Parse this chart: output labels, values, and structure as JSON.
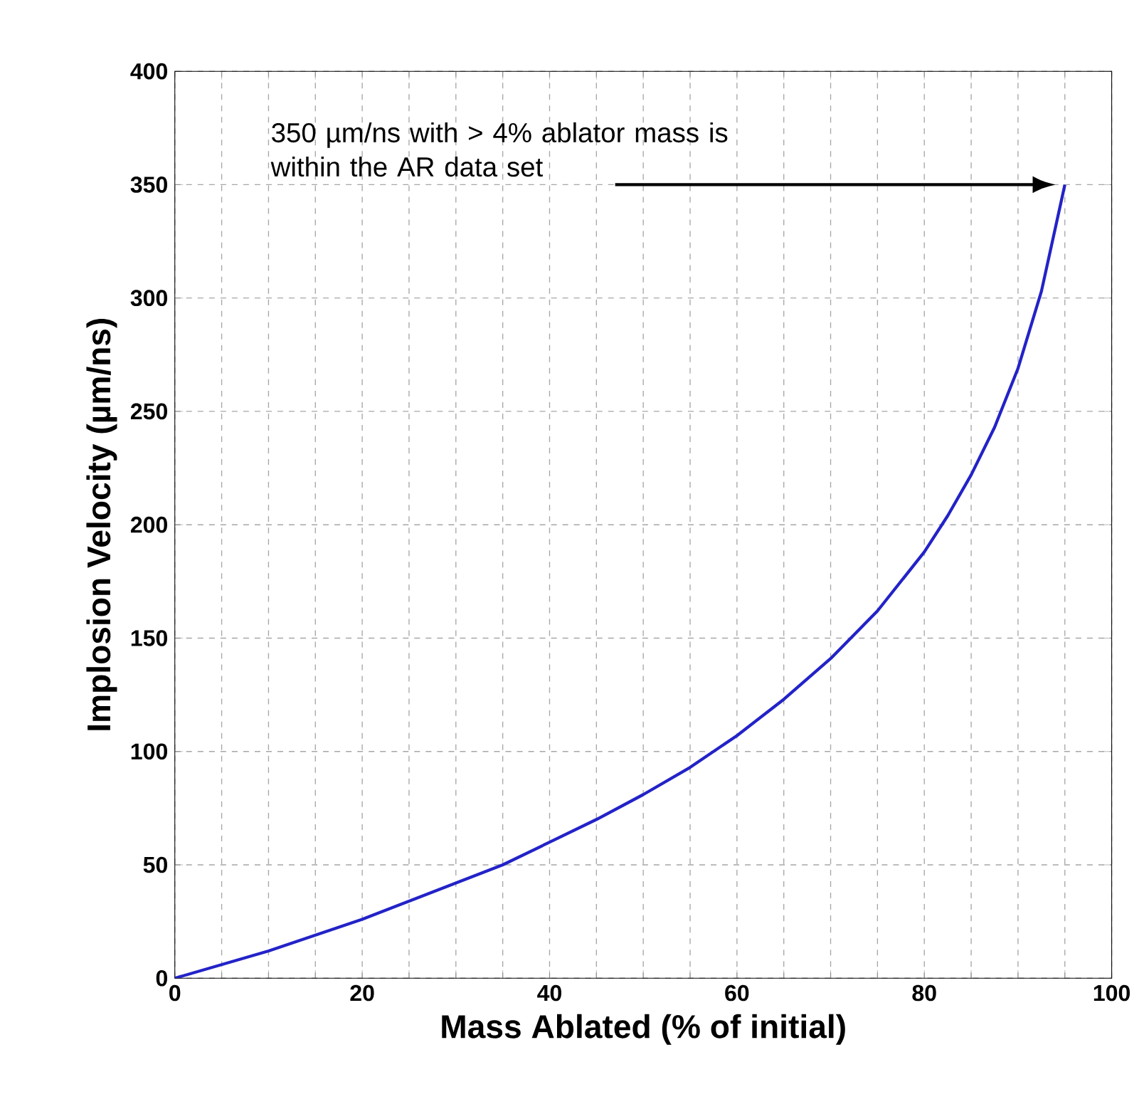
{
  "chart_data": {
    "type": "line",
    "xlabel": "Mass Ablated (% of initial)",
    "ylabel": "Implosion Velocity (µm/ns)",
    "x": [
      0,
      5,
      10,
      15,
      20,
      25,
      30,
      35,
      40,
      45,
      50,
      55,
      60,
      65,
      70,
      75,
      80,
      82.5,
      85,
      87.5,
      90,
      92.5,
      95
    ],
    "series": [
      {
        "color": "#2323c8",
        "values": [
          0,
          6,
          12,
          19,
          26,
          34,
          42,
          50,
          60,
          70,
          81,
          93,
          107,
          123,
          141,
          162,
          188,
          204,
          222,
          243,
          269,
          303,
          350
        ]
      }
    ],
    "xlim": [
      0,
      100
    ],
    "ylim": [
      0,
      400
    ],
    "xticks": [
      0,
      {
        "value": 5,
        "label": null
      },
      {
        "value": 10,
        "label": null
      },
      {
        "value": 15,
        "label": null
      },
      20,
      {
        "value": 25,
        "label": null
      },
      {
        "value": 30,
        "label": null
      },
      {
        "value": 35,
        "label": null
      },
      40,
      {
        "value": 45,
        "label": null
      },
      {
        "value": 50,
        "label": null
      },
      {
        "value": 55,
        "label": null
      },
      60,
      {
        "value": 65,
        "label": null
      },
      {
        "value": 70,
        "label": null
      },
      {
        "value": 75,
        "label": null
      },
      80,
      {
        "value": 85,
        "label": null
      },
      {
        "value": 90,
        "label": null
      },
      {
        "value": 95,
        "label": null
      },
      100
    ],
    "yticks": [
      0,
      50,
      100,
      150,
      200,
      250,
      300,
      350,
      400
    ],
    "grid": true,
    "marker": "none",
    "line_style": "solid",
    "annotations": [
      "350 µm/ns with > 4% ablator mass is within the AR data set"
    ]
  }
}
